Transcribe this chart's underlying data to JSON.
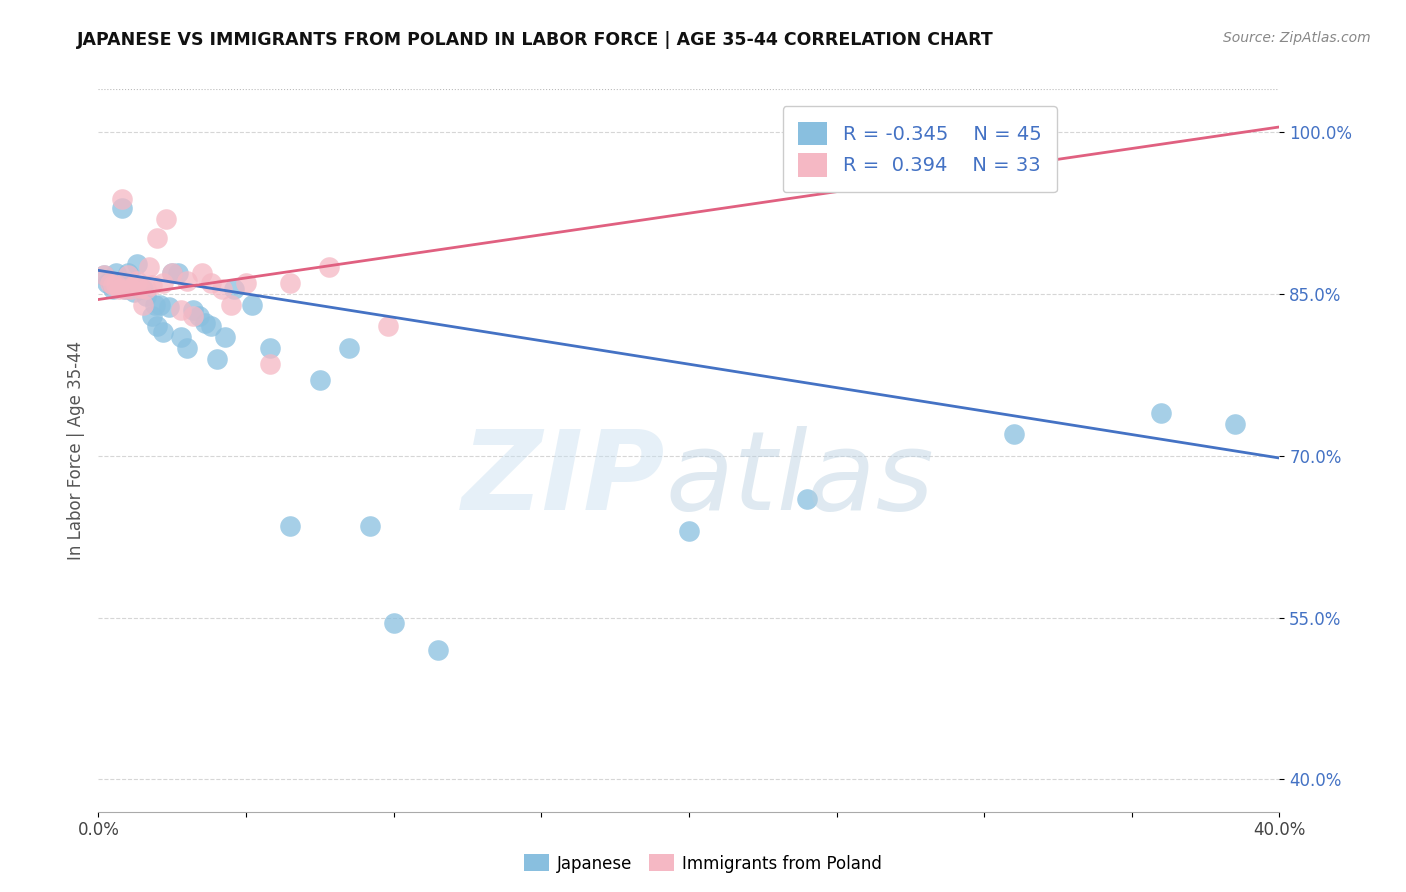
{
  "title": "JAPANESE VS IMMIGRANTS FROM POLAND IN LABOR FORCE | AGE 35-44 CORRELATION CHART",
  "source": "Source: ZipAtlas.com",
  "ylabel": "In Labor Force | Age 35-44",
  "y_ticks_right": [
    "100.0%",
    "85.0%",
    "70.0%",
    "55.0%",
    "40.0%"
  ],
  "y_tick_values": [
    1.0,
    0.85,
    0.7,
    0.55,
    0.4
  ],
  "x_lim": [
    0.0,
    0.4
  ],
  "y_lim": [
    0.37,
    1.04
  ],
  "legend_blue_R": "-0.345",
  "legend_blue_N": "45",
  "legend_pink_R": "0.394",
  "legend_pink_N": "33",
  "blue_color": "#89bfdf",
  "pink_color": "#f5b8c4",
  "blue_line_color": "#4472c4",
  "pink_line_color": "#e06080",
  "blue_line_y0": 0.872,
  "blue_line_y1": 0.698,
  "pink_line_y0": 0.845,
  "pink_line_y1": 1.005,
  "japanese_x": [
    0.002,
    0.003,
    0.004,
    0.005,
    0.006,
    0.007,
    0.008,
    0.009,
    0.01,
    0.011,
    0.012,
    0.013,
    0.014,
    0.015,
    0.016,
    0.018,
    0.019,
    0.02,
    0.021,
    0.022,
    0.024,
    0.025,
    0.027,
    0.028,
    0.03,
    0.032,
    0.034,
    0.036,
    0.038,
    0.04,
    0.043,
    0.046,
    0.052,
    0.058,
    0.065,
    0.075,
    0.085,
    0.092,
    0.1,
    0.115,
    0.2,
    0.24,
    0.31,
    0.36,
    0.385
  ],
  "japanese_y": [
    0.868,
    0.86,
    0.862,
    0.855,
    0.87,
    0.858,
    0.93,
    0.855,
    0.87,
    0.858,
    0.852,
    0.878,
    0.856,
    0.855,
    0.848,
    0.83,
    0.84,
    0.82,
    0.84,
    0.815,
    0.838,
    0.87,
    0.87,
    0.81,
    0.8,
    0.835,
    0.83,
    0.823,
    0.82,
    0.79,
    0.81,
    0.855,
    0.84,
    0.8,
    0.635,
    0.77,
    0.8,
    0.635,
    0.545,
    0.52,
    0.63,
    0.66,
    0.72,
    0.74,
    0.73
  ],
  "poland_x": [
    0.002,
    0.004,
    0.005,
    0.006,
    0.007,
    0.008,
    0.009,
    0.01,
    0.011,
    0.012,
    0.013,
    0.014,
    0.015,
    0.016,
    0.017,
    0.018,
    0.02,
    0.022,
    0.023,
    0.025,
    0.028,
    0.03,
    0.032,
    0.035,
    0.038,
    0.042,
    0.045,
    0.05,
    0.058,
    0.065,
    0.078,
    0.098,
    0.32
  ],
  "poland_y": [
    0.868,
    0.86,
    0.858,
    0.858,
    0.855,
    0.938,
    0.855,
    0.868,
    0.855,
    0.858,
    0.862,
    0.856,
    0.84,
    0.855,
    0.875,
    0.858,
    0.902,
    0.86,
    0.92,
    0.87,
    0.835,
    0.862,
    0.83,
    0.87,
    0.86,
    0.855,
    0.84,
    0.86,
    0.785,
    0.86,
    0.875,
    0.82,
    0.97
  ]
}
